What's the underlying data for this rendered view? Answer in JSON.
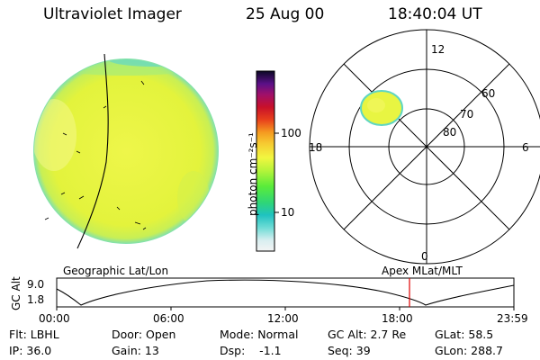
{
  "header": {
    "instrument": "Ultraviolet Imager",
    "date": "25 Aug 00",
    "time": "18:40:04 UT"
  },
  "colorbar": {
    "unit_label": "photon cm⁻²s⁻¹",
    "tick_100": "100",
    "tick_10": "10"
  },
  "polar_plot": {
    "label_top": "12",
    "label_left": "18",
    "label_right": "6",
    "label_bottom": "0",
    "lat_60": "60",
    "lat_70": "70",
    "lat_80": "80"
  },
  "timeline": {
    "ylabel": "GC Alt",
    "y_top": "9.0",
    "y_bottom": "1.8",
    "left_label": "Geographic Lat/Lon",
    "right_label": "Apex MLat/MLT",
    "ticks": [
      "00:00",
      "06:00",
      "12:00",
      "18:00",
      "23:59"
    ]
  },
  "status": {
    "flt": "Flt: LBHL",
    "door": "Door: Open",
    "mode": "Mode: Normal",
    "gc_alt": "GC Alt: 2.7 Re",
    "glat": "GLat:  58.5",
    "ip": "IP: 36.0",
    "gain": "Gain: 13",
    "dsp": "Dsp:    -1.1",
    "seq": "Seq: 39",
    "glon": "GLon: 288.7"
  },
  "colors": {
    "disk_fill": "#e8f542",
    "disk_edge": "#5fd6c2",
    "current_time_marker": "#e00000"
  }
}
